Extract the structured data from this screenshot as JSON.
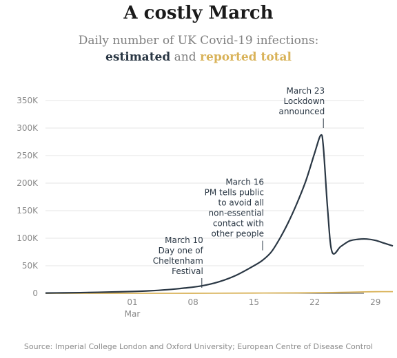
{
  "title": "A costly March",
  "subtitle": {
    "line1": "Daily number of UK Covid-19 infections:",
    "estimated": "estimated",
    "and": "and",
    "reported": "reported total"
  },
  "source": "Source: Imperial College London and Oxford University; European Centre of Disease Control",
  "colors": {
    "estimated": "#2a3744",
    "reported": "#d9b35a",
    "grid": "#e6e6e6",
    "tick": "#8a8a8a",
    "annotation": "#2a3744"
  },
  "chart_data": {
    "type": "line",
    "title": "A costly March",
    "xlabel": "",
    "ylabel": "",
    "x_range": [
      "2020-02-20",
      "2020-03-31"
    ],
    "ylim": [
      0,
      350000
    ],
    "grid": true,
    "y_ticks": [
      {
        "value": 0,
        "label": "0"
      },
      {
        "value": 50000,
        "label": "50K"
      },
      {
        "value": 100000,
        "label": "100K"
      },
      {
        "value": 150000,
        "label": "150K"
      },
      {
        "value": 200000,
        "label": "200K"
      },
      {
        "value": 250000,
        "label": "250K"
      },
      {
        "value": 300000,
        "label": "300K"
      },
      {
        "value": 350000,
        "label": "350K"
      }
    ],
    "x_ticks": [
      {
        "date": "2020-03-01",
        "label": "01",
        "sublabel": "Mar"
      },
      {
        "date": "2020-03-08",
        "label": "08",
        "sublabel": ""
      },
      {
        "date": "2020-03-15",
        "label": "15",
        "sublabel": ""
      },
      {
        "date": "2020-03-22",
        "label": "22",
        "sublabel": ""
      },
      {
        "date": "2020-03-29",
        "label": "29",
        "sublabel": ""
      }
    ],
    "series": [
      {
        "name": "estimated",
        "color": "#2a3744",
        "points": [
          [
            "2020-02-20",
            500
          ],
          [
            "2020-02-22",
            800
          ],
          [
            "2020-02-24",
            1200
          ],
          [
            "2020-02-26",
            1800
          ],
          [
            "2020-02-28",
            2500
          ],
          [
            "2020-03-01",
            3300
          ],
          [
            "2020-03-03",
            4500
          ],
          [
            "2020-03-05",
            6500
          ],
          [
            "2020-03-07",
            9500
          ],
          [
            "2020-03-09",
            13500
          ],
          [
            "2020-03-11",
            21000
          ],
          [
            "2020-03-13",
            33000
          ],
          [
            "2020-03-15",
            50000
          ],
          [
            "2020-03-16",
            60000
          ],
          [
            "2020-03-17",
            75000
          ],
          [
            "2020-03-18",
            100000
          ],
          [
            "2020-03-19",
            130000
          ],
          [
            "2020-03-20",
            165000
          ],
          [
            "2020-03-21",
            205000
          ],
          [
            "2020-03-22",
            255000
          ],
          [
            "2020-03-22.7",
            287000
          ],
          [
            "2020-03-23",
            265000
          ],
          [
            "2020-03-23.5",
            150000
          ],
          [
            "2020-03-24",
            75000
          ],
          [
            "2020-03-25",
            85000
          ],
          [
            "2020-03-26",
            95000
          ],
          [
            "2020-03-27",
            98000
          ],
          [
            "2020-03-28",
            98500
          ],
          [
            "2020-03-29",
            96000
          ],
          [
            "2020-03-30",
            91000
          ],
          [
            "2020-03-31",
            86000
          ]
        ]
      },
      {
        "name": "reported total",
        "color": "#d9b35a",
        "points": [
          [
            "2020-02-20",
            0
          ],
          [
            "2020-03-01",
            20
          ],
          [
            "2020-03-08",
            70
          ],
          [
            "2020-03-15",
            400
          ],
          [
            "2020-03-20",
            700
          ],
          [
            "2020-03-24",
            1400
          ],
          [
            "2020-03-27",
            2300
          ],
          [
            "2020-03-29",
            2900
          ],
          [
            "2020-03-31",
            3000
          ]
        ]
      }
    ],
    "annotations": [
      {
        "date": "2020-03-09",
        "value": 10000,
        "lines": [
          "March 10",
          "Day one of",
          "Cheltenham",
          "Festival"
        ]
      },
      {
        "date": "2020-03-16",
        "value": 78000,
        "lines": [
          "March 16",
          "PM tells public",
          "to avoid all",
          "non-essential",
          "contact with",
          "other people"
        ]
      },
      {
        "date": "2020-03-23",
        "value": 300000,
        "lines": [
          "March 23",
          "Lockdown",
          "announced"
        ]
      }
    ]
  }
}
